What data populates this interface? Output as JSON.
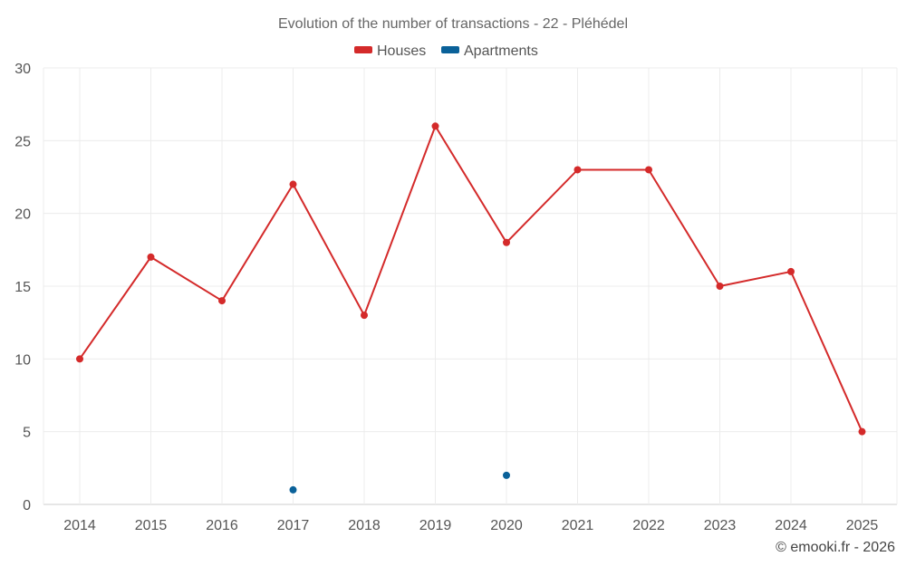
{
  "chart_data": {
    "type": "line",
    "title": "Evolution of the number of transactions - 22 - Pléhédel",
    "categories": [
      "2014",
      "2015",
      "2016",
      "2017",
      "2018",
      "2019",
      "2020",
      "2021",
      "2022",
      "2023",
      "2024",
      "2025"
    ],
    "series": [
      {
        "name": "Houses",
        "color": "#d42a2a",
        "values": [
          10,
          17,
          14,
          22,
          13,
          26,
          18,
          23,
          23,
          15,
          16,
          5
        ]
      },
      {
        "name": "Apartments",
        "color": "#0a6199",
        "values": [
          null,
          null,
          null,
          1,
          null,
          null,
          2,
          null,
          null,
          null,
          null,
          null
        ]
      }
    ],
    "yticks": [
      "0",
      "5",
      "10",
      "15",
      "20",
      "25",
      "30"
    ],
    "ylim": [
      0,
      30
    ],
    "xlabel": "",
    "ylabel": "",
    "grid": true,
    "legend_position": "top-center"
  },
  "credit": "© emooki.fr - 2026"
}
